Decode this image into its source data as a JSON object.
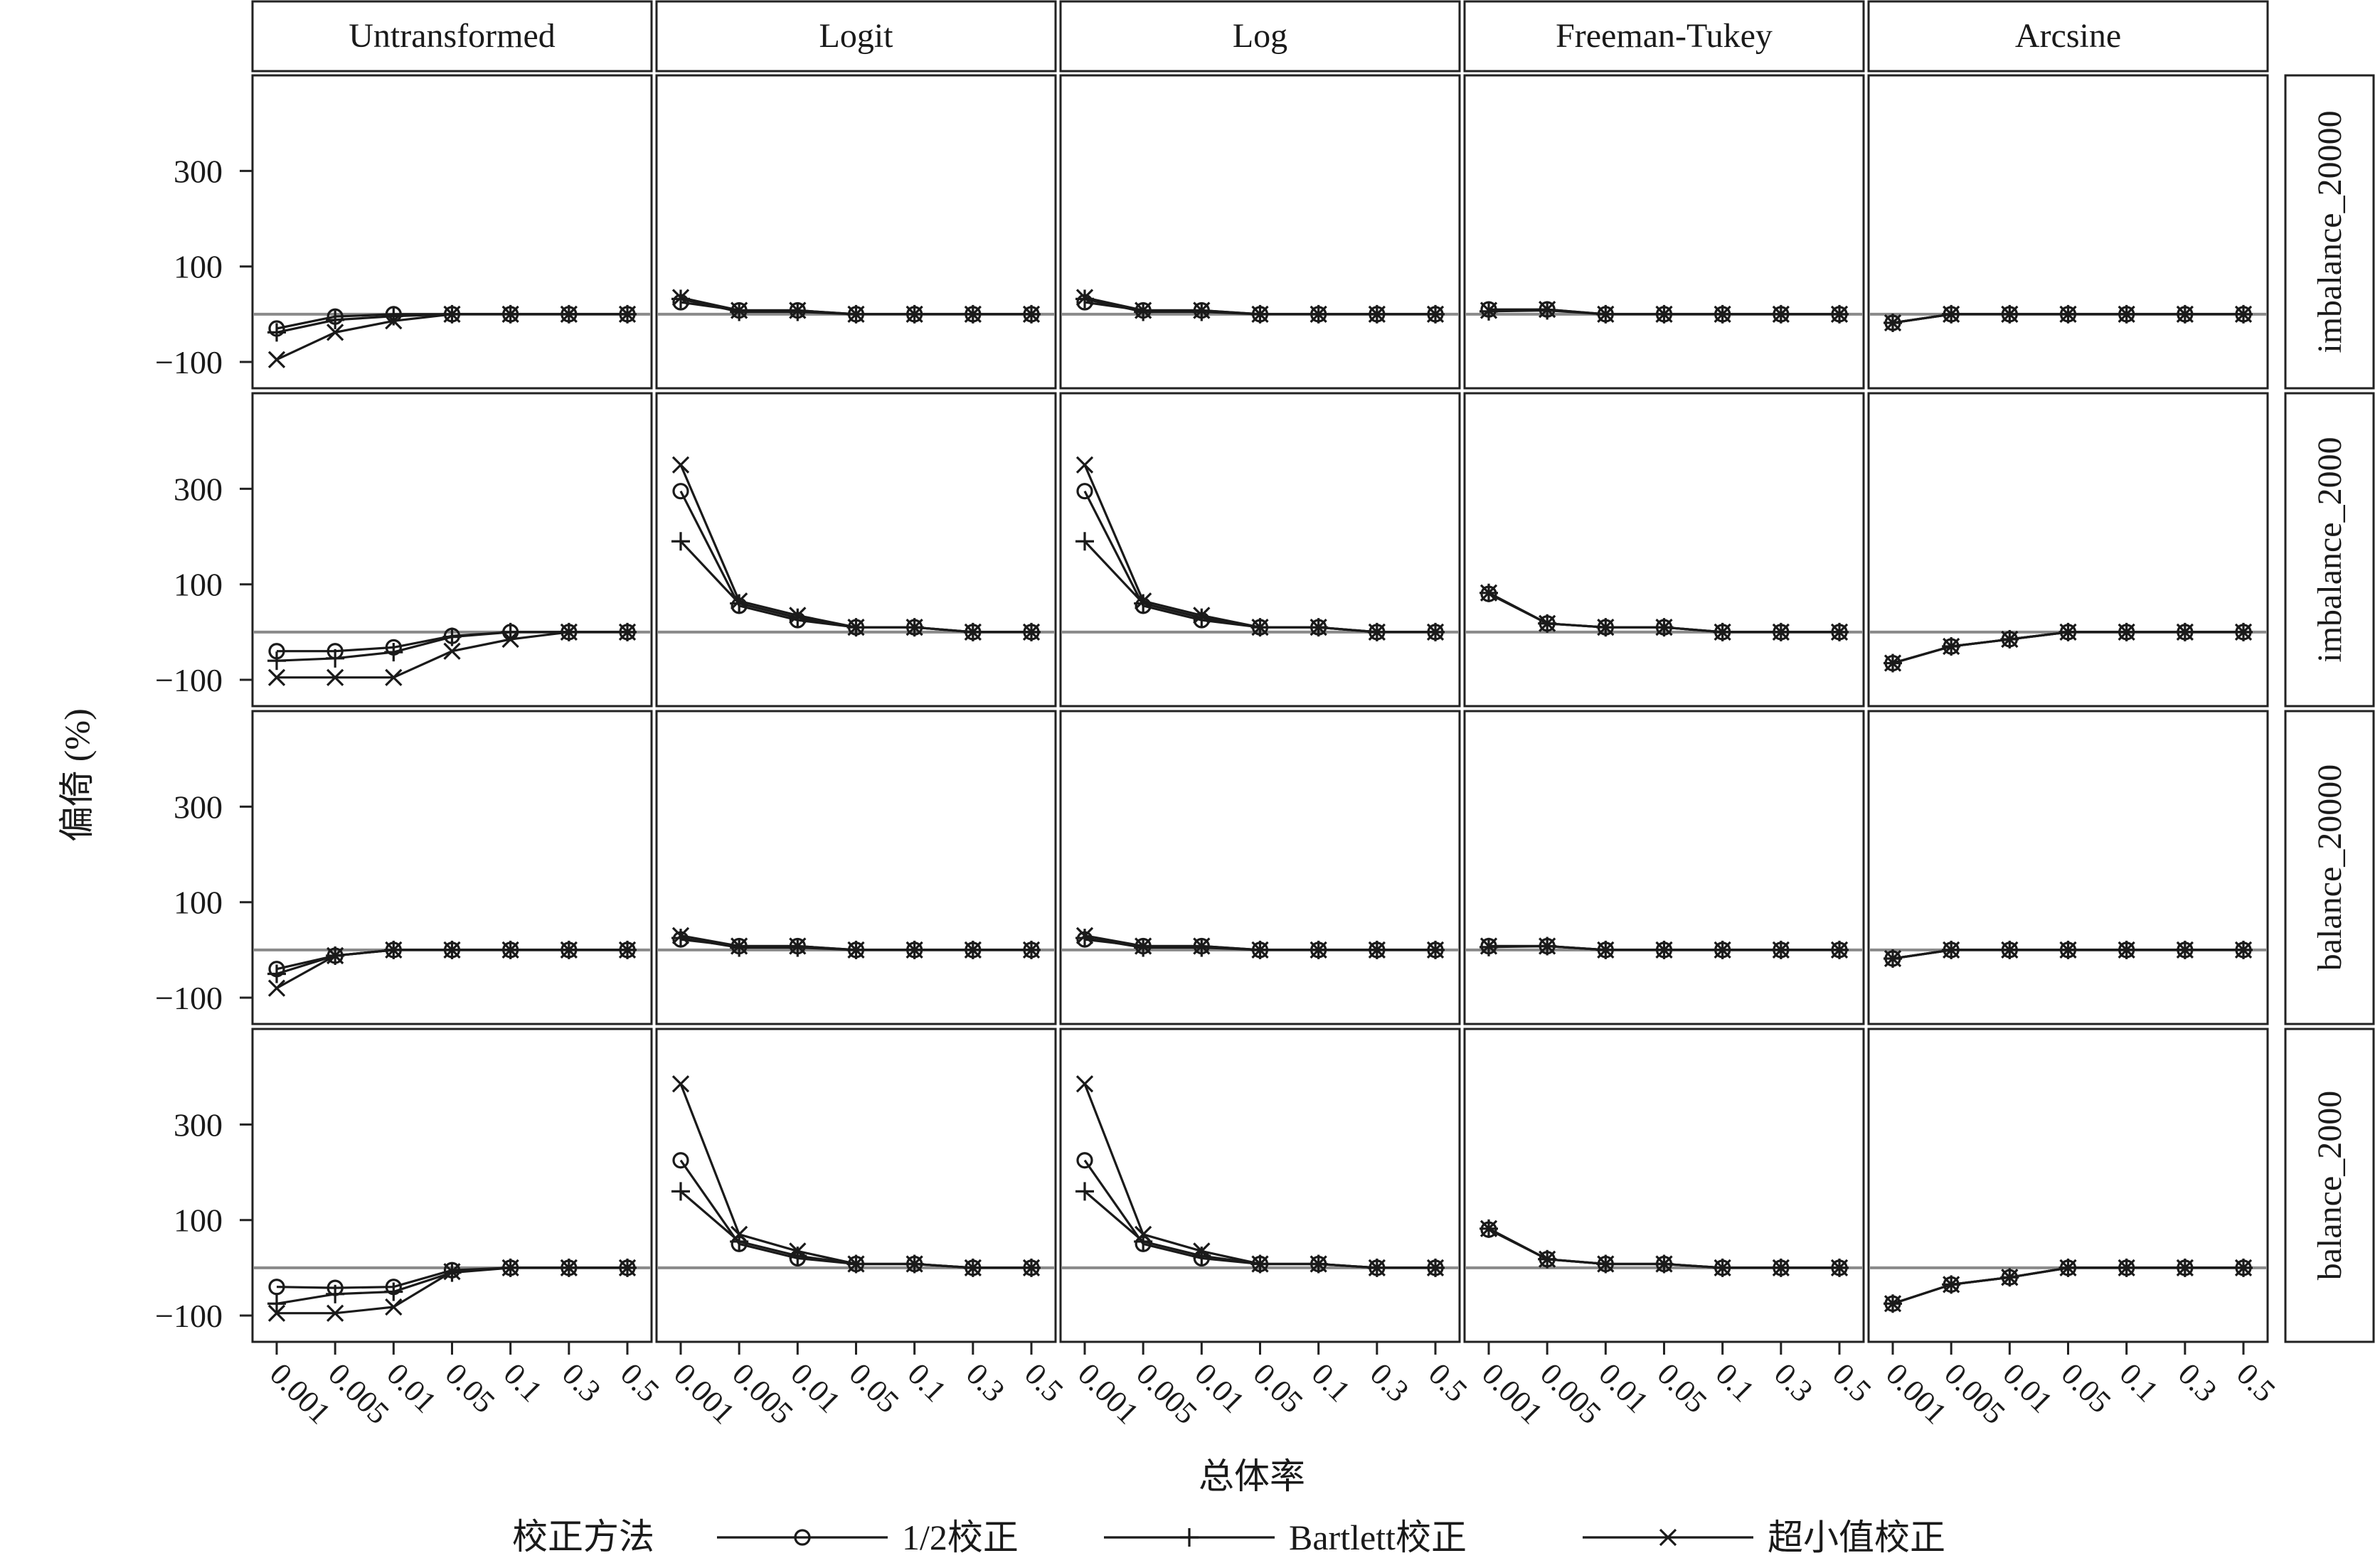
{
  "chart_data": {
    "type": "line",
    "facet_columns": [
      "Untransformed",
      "Logit",
      "Log",
      "Freeman-Tukey",
      "Arcsine"
    ],
    "facet_rows": [
      "imbalance_20000",
      "imbalance_2000",
      "balance_20000",
      "balance_2000"
    ],
    "x_categories": [
      "0.001",
      "0.005",
      "0.01",
      "0.05",
      "0.1",
      "0.3",
      "0.5"
    ],
    "xlabel": "总体率",
    "ylabel": "偏倚 (%)",
    "y_ticks": [
      300,
      100,
      -100
    ],
    "y_ticks_display": [
      "300",
      "100",
      "−100"
    ],
    "ylim": [
      -155,
      500
    ],
    "reference_line_y": 0,
    "legend": {
      "title": "校正方法",
      "position": "bottom",
      "entries": [
        {
          "key": "half",
          "label": "1/2校正",
          "marker": "circle"
        },
        {
          "key": "bartlett",
          "label": "Bartlett校正",
          "marker": "plus"
        },
        {
          "key": "tiny",
          "label": "超小值校正",
          "marker": "cross"
        }
      ]
    },
    "panels": {
      "imbalance_20000": {
        "Untransformed": {
          "half": [
            -30,
            -5,
            0,
            0,
            0,
            0,
            0
          ],
          "bartlett": [
            -38,
            -12,
            -4,
            0,
            0,
            0,
            0
          ],
          "tiny": [
            -95,
            -38,
            -14,
            0,
            0,
            0,
            0
          ]
        },
        "Logit": {
          "half": [
            25,
            8,
            8,
            0,
            0,
            0,
            0
          ],
          "bartlett": [
            32,
            5,
            5,
            0,
            0,
            0,
            0
          ],
          "tiny": [
            35,
            8,
            8,
            0,
            0,
            0,
            0
          ]
        },
        "Log": {
          "half": [
            25,
            8,
            8,
            0,
            0,
            0,
            0
          ],
          "bartlett": [
            32,
            5,
            5,
            0,
            0,
            0,
            0
          ],
          "tiny": [
            35,
            8,
            8,
            0,
            0,
            0,
            0
          ]
        },
        "Freeman-Tukey": {
          "half": [
            10,
            10,
            0,
            0,
            0,
            0,
            0
          ],
          "bartlett": [
            6,
            8,
            0,
            0,
            0,
            0,
            0
          ],
          "tiny": [
            8,
            10,
            0,
            0,
            0,
            0,
            0
          ]
        },
        "Arcsine": {
          "half": [
            -18,
            0,
            0,
            0,
            0,
            0,
            0
          ],
          "bartlett": [
            -18,
            0,
            0,
            0,
            0,
            0,
            0
          ],
          "tiny": [
            -18,
            0,
            0,
            0,
            0,
            0,
            0
          ]
        }
      },
      "imbalance_2000": {
        "Untransformed": {
          "half": [
            -40,
            -40,
            -32,
            -8,
            0,
            0,
            0
          ],
          "bartlett": [
            -60,
            -55,
            -42,
            -10,
            0,
            0,
            0
          ],
          "tiny": [
            -95,
            -95,
            -95,
            -40,
            -15,
            0,
            0
          ]
        },
        "Logit": {
          "half": [
            295,
            55,
            25,
            10,
            10,
            0,
            0
          ],
          "bartlett": [
            190,
            60,
            30,
            10,
            10,
            0,
            0
          ],
          "tiny": [
            350,
            65,
            35,
            10,
            10,
            0,
            0
          ]
        },
        "Log": {
          "half": [
            295,
            55,
            25,
            10,
            10,
            0,
            0
          ],
          "bartlett": [
            190,
            60,
            30,
            10,
            10,
            0,
            0
          ],
          "tiny": [
            350,
            65,
            35,
            10,
            10,
            0,
            0
          ]
        },
        "Freeman-Tukey": {
          "half": [
            80,
            18,
            10,
            10,
            0,
            0,
            0
          ],
          "bartlett": [
            82,
            18,
            10,
            10,
            0,
            0,
            0
          ],
          "tiny": [
            82,
            18,
            10,
            10,
            0,
            0,
            0
          ]
        },
        "Arcsine": {
          "half": [
            -65,
            -30,
            -15,
            0,
            0,
            0,
            0
          ],
          "bartlett": [
            -65,
            -30,
            -15,
            0,
            0,
            0,
            0
          ],
          "tiny": [
            -65,
            -30,
            -15,
            0,
            0,
            0,
            0
          ]
        }
      },
      "balance_20000": {
        "Untransformed": {
          "half": [
            -40,
            -12,
            0,
            0,
            0,
            0,
            0
          ],
          "bartlett": [
            -50,
            -12,
            0,
            0,
            0,
            0,
            0
          ],
          "tiny": [
            -80,
            -12,
            0,
            0,
            0,
            0,
            0
          ]
        },
        "Logit": {
          "half": [
            22,
            8,
            8,
            0,
            0,
            0,
            0
          ],
          "bartlett": [
            25,
            5,
            5,
            0,
            0,
            0,
            0
          ],
          "tiny": [
            30,
            8,
            8,
            0,
            0,
            0,
            0
          ]
        },
        "Log": {
          "half": [
            22,
            8,
            8,
            0,
            0,
            0,
            0
          ],
          "bartlett": [
            25,
            5,
            5,
            0,
            0,
            0,
            0
          ],
          "tiny": [
            30,
            8,
            8,
            0,
            0,
            0,
            0
          ]
        },
        "Freeman-Tukey": {
          "half": [
            8,
            8,
            0,
            0,
            0,
            0,
            0
          ],
          "bartlett": [
            6,
            8,
            0,
            0,
            0,
            0,
            0
          ],
          "tiny": [
            8,
            8,
            0,
            0,
            0,
            0,
            0
          ]
        },
        "Arcsine": {
          "half": [
            -18,
            0,
            0,
            0,
            0,
            0,
            0
          ],
          "bartlett": [
            -18,
            0,
            0,
            0,
            0,
            0,
            0
          ],
          "tiny": [
            -18,
            0,
            0,
            0,
            0,
            0,
            0
          ]
        }
      },
      "balance_2000": {
        "Untransformed": {
          "half": [
            -40,
            -42,
            -40,
            -5,
            0,
            0,
            0
          ],
          "bartlett": [
            -75,
            -55,
            -50,
            -10,
            0,
            0,
            0
          ],
          "tiny": [
            -95,
            -95,
            -82,
            -8,
            0,
            0,
            0
          ]
        },
        "Logit": {
          "half": [
            225,
            50,
            20,
            8,
            8,
            0,
            0
          ],
          "bartlett": [
            160,
            55,
            25,
            8,
            8,
            0,
            0
          ],
          "tiny": [
            385,
            70,
            35,
            8,
            8,
            0,
            0
          ]
        },
        "Log": {
          "half": [
            225,
            50,
            20,
            8,
            8,
            0,
            0
          ],
          "bartlett": [
            160,
            55,
            25,
            8,
            8,
            0,
            0
          ],
          "tiny": [
            385,
            70,
            35,
            8,
            8,
            0,
            0
          ]
        },
        "Freeman-Tukey": {
          "half": [
            80,
            18,
            8,
            8,
            0,
            0,
            0
          ],
          "bartlett": [
            82,
            18,
            8,
            8,
            0,
            0,
            0
          ],
          "tiny": [
            82,
            18,
            8,
            8,
            0,
            0,
            0
          ]
        },
        "Arcsine": {
          "half": [
            -75,
            -35,
            -20,
            0,
            0,
            0,
            0
          ],
          "bartlett": [
            -75,
            -35,
            -20,
            0,
            0,
            0,
            0
          ],
          "tiny": [
            -75,
            -35,
            -20,
            0,
            0,
            0,
            0
          ]
        }
      }
    }
  }
}
